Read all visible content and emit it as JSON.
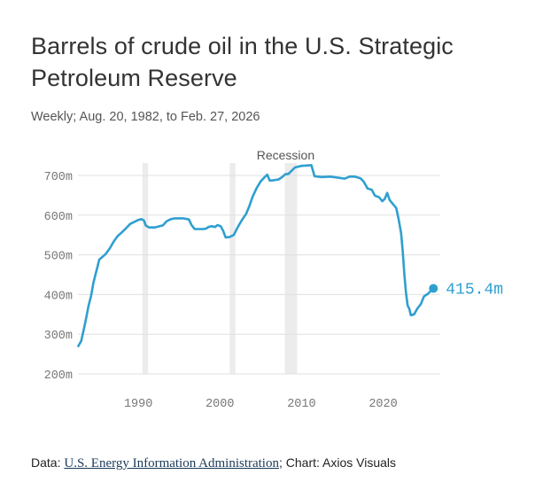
{
  "title": "Barrels of crude oil in the U.S. Strategic Petroleum Reserve",
  "subtitle": "Weekly; Aug. 20, 1982, to Feb. 27, 2026",
  "footer": {
    "data_prefix": "Data: ",
    "source_link": "U.S. Energy Information Administration",
    "credit": "; Chart: Axios Visuals"
  },
  "colors": {
    "line": "#2f9fd0",
    "recession_band": "#ececec",
    "grid": "#e0e0e0",
    "axis_text": "#777777"
  },
  "chart_data": {
    "type": "line",
    "title": "Barrels of crude oil in the U.S. Strategic Petroleum Reserve",
    "xlim": [
      1982.6,
      2027
    ],
    "ylim": [
      200,
      720
    ],
    "x_ticks": [
      1990,
      2000,
      2010,
      2020
    ],
    "x_tick_labels": [
      "1990",
      "2000",
      "2010",
      "2020"
    ],
    "y_ticks": [
      200,
      300,
      400,
      500,
      600,
      700
    ],
    "y_tick_labels": [
      "200m",
      "300m",
      "400m",
      "500m",
      "600m",
      "700m"
    ],
    "grid": "horizontal",
    "recessions": [
      [
        1990.5,
        1991.2
      ],
      [
        2001.2,
        2001.9
      ],
      [
        2007.95,
        2009.45
      ]
    ],
    "recession_label": "Recession",
    "end_label": "415.4m",
    "series": [
      {
        "points": [
          [
            1982.64,
            270
          ],
          [
            1983.0,
            283
          ],
          [
            1983.3,
            310
          ],
          [
            1983.6,
            340
          ],
          [
            1983.9,
            372
          ],
          [
            1984.2,
            395
          ],
          [
            1984.5,
            430
          ],
          [
            1984.8,
            455
          ],
          [
            1985.0,
            470
          ],
          [
            1985.2,
            488
          ],
          [
            1985.5,
            493
          ],
          [
            1986.0,
            502
          ],
          [
            1986.5,
            516
          ],
          [
            1987.0,
            534
          ],
          [
            1987.5,
            548
          ],
          [
            1988.0,
            557
          ],
          [
            1988.5,
            567
          ],
          [
            1989.0,
            578
          ],
          [
            1989.5,
            583
          ],
          [
            1990.0,
            588
          ],
          [
            1990.4,
            590
          ],
          [
            1990.7,
            586
          ],
          [
            1990.9,
            574
          ],
          [
            1991.3,
            569
          ],
          [
            1992.0,
            569
          ],
          [
            1993.0,
            574
          ],
          [
            1993.5,
            585
          ],
          [
            1994.0,
            590
          ],
          [
            1994.5,
            592
          ],
          [
            1995.5,
            592
          ],
          [
            1996.2,
            589
          ],
          [
            1996.5,
            576
          ],
          [
            1996.9,
            565
          ],
          [
            1998.0,
            565
          ],
          [
            1998.3,
            566
          ],
          [
            1998.6,
            570
          ],
          [
            1999.0,
            572
          ],
          [
            1999.4,
            570
          ],
          [
            1999.7,
            575
          ],
          [
            2000.1,
            572
          ],
          [
            2000.4,
            560
          ],
          [
            2000.7,
            544
          ],
          [
            2001.2,
            545
          ],
          [
            2001.7,
            550
          ],
          [
            2002.2,
            570
          ],
          [
            2002.7,
            588
          ],
          [
            2003.2,
            603
          ],
          [
            2003.6,
            622
          ],
          [
            2004.0,
            646
          ],
          [
            2004.5,
            668
          ],
          [
            2005.0,
            685
          ],
          [
            2005.5,
            696
          ],
          [
            2005.8,
            702
          ],
          [
            2006.1,
            687
          ],
          [
            2006.6,
            688
          ],
          [
            2007.2,
            690
          ],
          [
            2007.7,
            697
          ],
          [
            2008.0,
            703
          ],
          [
            2008.4,
            704
          ],
          [
            2008.7,
            710
          ],
          [
            2009.2,
            720
          ],
          [
            2010.0,
            724
          ],
          [
            2011.2,
            726
          ],
          [
            2011.6,
            698
          ],
          [
            2012.5,
            696
          ],
          [
            2013.5,
            697
          ],
          [
            2014.6,
            694
          ],
          [
            2015.3,
            692
          ],
          [
            2015.9,
            697
          ],
          [
            2016.5,
            697
          ],
          [
            2017.2,
            693
          ],
          [
            2017.6,
            685
          ],
          [
            2018.1,
            667
          ],
          [
            2018.6,
            664
          ],
          [
            2019.0,
            649
          ],
          [
            2019.5,
            645
          ],
          [
            2019.9,
            635
          ],
          [
            2020.2,
            641
          ],
          [
            2020.5,
            656
          ],
          [
            2020.8,
            638
          ],
          [
            2021.2,
            628
          ],
          [
            2021.6,
            618
          ],
          [
            2021.9,
            590
          ],
          [
            2022.2,
            555
          ],
          [
            2022.4,
            510
          ],
          [
            2022.6,
            450
          ],
          [
            2022.8,
            405
          ],
          [
            2023.0,
            372
          ],
          [
            2023.2,
            365
          ],
          [
            2023.4,
            348
          ],
          [
            2023.8,
            350
          ],
          [
            2024.2,
            365
          ],
          [
            2024.6,
            375
          ],
          [
            2025.0,
            395
          ],
          [
            2025.5,
            402
          ],
          [
            2026.16,
            415.4
          ]
        ]
      }
    ]
  }
}
